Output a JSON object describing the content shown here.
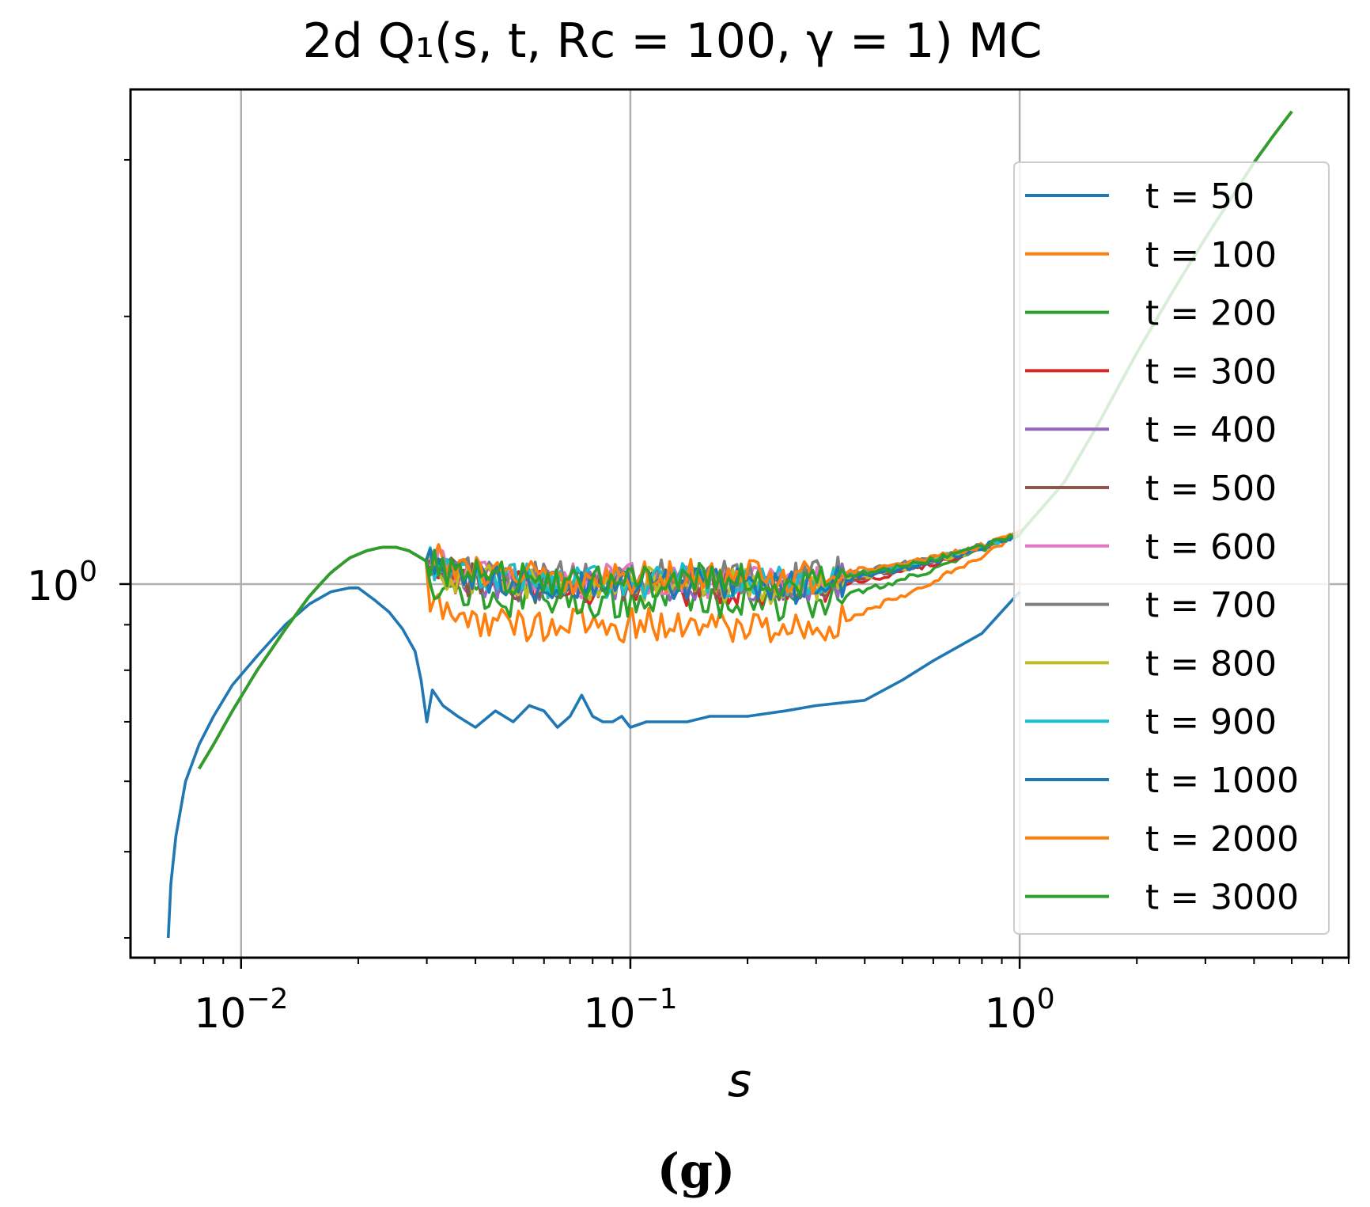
{
  "chart_data": {
    "type": "line",
    "title": "2d Q₁(s, t, Rᴄ = 100, γ = 1) MC",
    "xlabel": "s",
    "ylabel": "",
    "xscale": "log",
    "yscale": "log",
    "xlim": [
      0.0052,
      7.0
    ],
    "ylim": [
      0.38,
      3.6
    ],
    "grid": true,
    "legend_position": "right",
    "x_ticks": [
      {
        "value": 0.01,
        "base": "10",
        "exp": "−2"
      },
      {
        "value": 0.1,
        "base": "10",
        "exp": "−1"
      },
      {
        "value": 1,
        "base": "10",
        "exp": "0"
      }
    ],
    "y_ticks": [
      {
        "value": 1,
        "base": "10",
        "exp": "0"
      }
    ],
    "caption": "(g)",
    "series": [
      {
        "name": "t = 50",
        "color": "#1f77b4",
        "kind": "t50",
        "x": [
          0.0065,
          0.0066,
          0.0068,
          0.0072,
          0.0078,
          0.0085,
          0.0095,
          0.011,
          0.013,
          0.015,
          0.017,
          0.019,
          0.02,
          0.022,
          0.024,
          0.026,
          0.028,
          0.029,
          0.03,
          0.031,
          0.033,
          0.036,
          0.04,
          0.045,
          0.05,
          0.055,
          0.06,
          0.065,
          0.07,
          0.075,
          0.08,
          0.085,
          0.09,
          0.095,
          0.1,
          0.11,
          0.125,
          0.14,
          0.16,
          0.18,
          0.2,
          0.25,
          0.3,
          0.4,
          0.5,
          0.6,
          0.8,
          1.0
        ],
        "y": [
          0.4,
          0.46,
          0.52,
          0.6,
          0.66,
          0.71,
          0.77,
          0.83,
          0.9,
          0.95,
          0.98,
          0.99,
          0.99,
          0.96,
          0.93,
          0.89,
          0.84,
          0.78,
          0.7,
          0.76,
          0.73,
          0.71,
          0.69,
          0.72,
          0.7,
          0.73,
          0.72,
          0.69,
          0.71,
          0.75,
          0.71,
          0.7,
          0.7,
          0.71,
          0.69,
          0.7,
          0.7,
          0.7,
          0.71,
          0.71,
          0.71,
          0.72,
          0.73,
          0.74,
          0.78,
          0.82,
          0.88,
          0.98
        ]
      },
      {
        "name": "t = 100",
        "color": "#ff7f0e",
        "kind": "main",
        "offset": 0.9
      },
      {
        "name": "t = 200",
        "color": "#2ca02c",
        "kind": "main",
        "offset": 0.96
      },
      {
        "name": "t = 300",
        "color": "#d62728",
        "kind": "main",
        "offset": 0.99
      },
      {
        "name": "t = 400",
        "color": "#9467bd",
        "kind": "main",
        "offset": 1.0
      },
      {
        "name": "t = 500",
        "color": "#8c564b",
        "kind": "main",
        "offset": 1.0
      },
      {
        "name": "t = 600",
        "color": "#e377c2",
        "kind": "main",
        "offset": 1.01
      },
      {
        "name": "t = 700",
        "color": "#7f7f7f",
        "kind": "main",
        "offset": 1.02
      },
      {
        "name": "t = 800",
        "color": "#bcbd22",
        "kind": "main",
        "offset": 1.0
      },
      {
        "name": "t = 900",
        "color": "#17becf",
        "kind": "main",
        "offset": 1.01
      },
      {
        "name": "t = 1000",
        "color": "#1f77b4",
        "kind": "main",
        "offset": 1.0
      },
      {
        "name": "t = 2000",
        "color": "#ff7f0e",
        "kind": "main",
        "offset": 1.02
      },
      {
        "name": "t = 3000",
        "color": "#2ca02c",
        "kind": "main",
        "offset": 1.01
      }
    ],
    "main_curve": {
      "x": [
        0.0078,
        0.0085,
        0.0095,
        0.011,
        0.013,
        0.015,
        0.017,
        0.019,
        0.021,
        0.023,
        0.025,
        0.027,
        0.029,
        0.031,
        0.034,
        0.037,
        0.04,
        0.045,
        0.05,
        0.06,
        0.07,
        0.08,
        0.09,
        0.1,
        0.12,
        0.15,
        0.2,
        0.25,
        0.3,
        0.4,
        0.5,
        0.6,
        0.7,
        0.8,
        0.9,
        1.0,
        1.3,
        1.6,
        2.0,
        2.5,
        3.0,
        3.5,
        4.0,
        4.5,
        5.0
      ],
      "y": [
        0.62,
        0.66,
        0.72,
        0.8,
        0.89,
        0.97,
        1.03,
        1.07,
        1.09,
        1.1,
        1.1,
        1.09,
        1.07,
        1.05,
        1.03,
        1.02,
        1.01,
        1.01,
        1.0,
        1.0,
        1.0,
        1.0,
        1.0,
        1.0,
        1.0,
        1.0,
        1.0,
        0.99,
        1.0,
        1.02,
        1.04,
        1.06,
        1.08,
        1.1,
        1.12,
        1.14,
        1.3,
        1.52,
        1.82,
        2.15,
        2.45,
        2.72,
        2.98,
        3.2,
        3.4
      ]
    }
  }
}
